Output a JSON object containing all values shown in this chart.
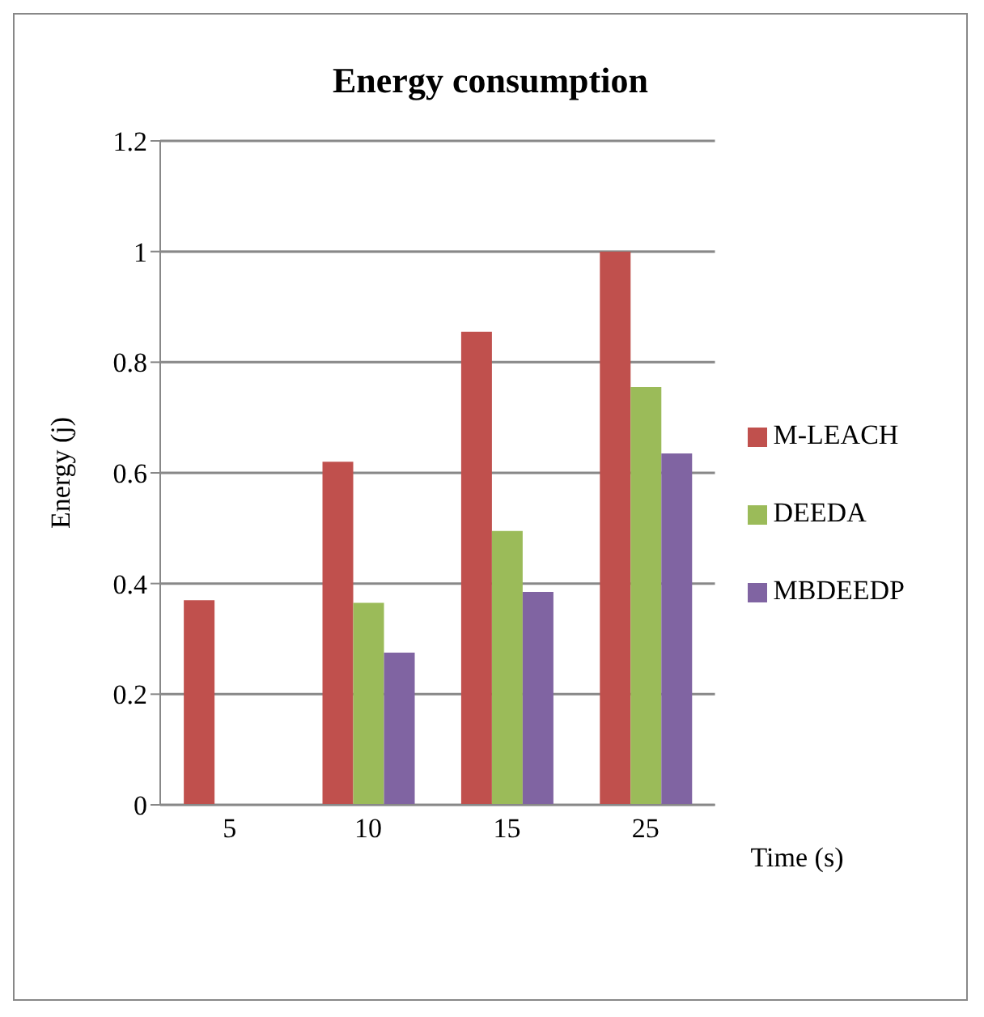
{
  "chart_data": {
    "type": "bar",
    "title": "Energy consumption",
    "xlabel": "Time (s)",
    "ylabel": "Energy (j)",
    "categories": [
      "5",
      "10",
      "15",
      "25"
    ],
    "series": [
      {
        "name": "M-LEACH",
        "color": "#c0504d",
        "values": [
          0.37,
          0.62,
          0.855,
          1.0
        ]
      },
      {
        "name": "DEEDA",
        "color": "#9bbb59",
        "values": [
          0,
          0.365,
          0.495,
          0.755
        ]
      },
      {
        "name": "MBDEEDP",
        "color": "#8064a2",
        "values": [
          0,
          0.275,
          0.385,
          0.635
        ]
      }
    ],
    "ylim": [
      0,
      1.2
    ],
    "yticks": [
      0,
      0.2,
      0.4,
      0.6,
      0.8,
      1,
      1.2
    ],
    "grid": "y",
    "legend": "right"
  }
}
